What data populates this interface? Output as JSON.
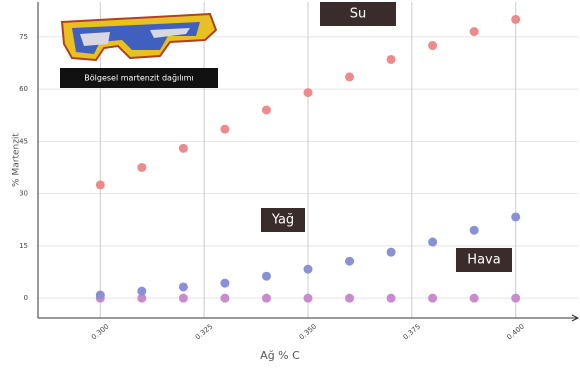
{
  "chart_data": {
    "type": "scatter",
    "inset_caption": "Bölgesel martenzit dağılımı",
    "xlabel": "Ağ % C",
    "ylabel": "% Martenzit",
    "x": [
      0.3,
      0.31,
      0.32,
      0.33,
      0.34,
      0.35,
      0.36,
      0.37,
      0.38,
      0.39,
      0.4
    ],
    "series": [
      {
        "name": "Su",
        "color": "#ef8a8c",
        "values": [
          32.5,
          37.5,
          43,
          48.5,
          54,
          59,
          63.5,
          68.5,
          72.5,
          76.5,
          80
        ]
      },
      {
        "name": "Yağ",
        "color": "#8890d8",
        "values": [
          0.9,
          2,
          3.2,
          4.3,
          6.3,
          8.3,
          10.6,
          13.2,
          16.1,
          19.5,
          23.3
        ]
      },
      {
        "name": "Hava",
        "color": "#c88bcc",
        "values": [
          0,
          0,
          0,
          0,
          0,
          0,
          0,
          0,
          0,
          0,
          0
        ]
      }
    ],
    "xlim": [
      0.285,
      0.415
    ],
    "ylim": [
      -5.7,
      85
    ],
    "xticks": [
      {
        "value": 0.3,
        "label": "0.300"
      },
      {
        "value": 0.325,
        "label": "0.325"
      },
      {
        "value": 0.35,
        "label": "0.350"
      },
      {
        "value": 0.375,
        "label": "0.375"
      },
      {
        "value": 0.4,
        "label": "0.400"
      }
    ],
    "yticks": [
      0,
      15,
      30,
      45,
      60,
      75
    ],
    "grid": true
  }
}
